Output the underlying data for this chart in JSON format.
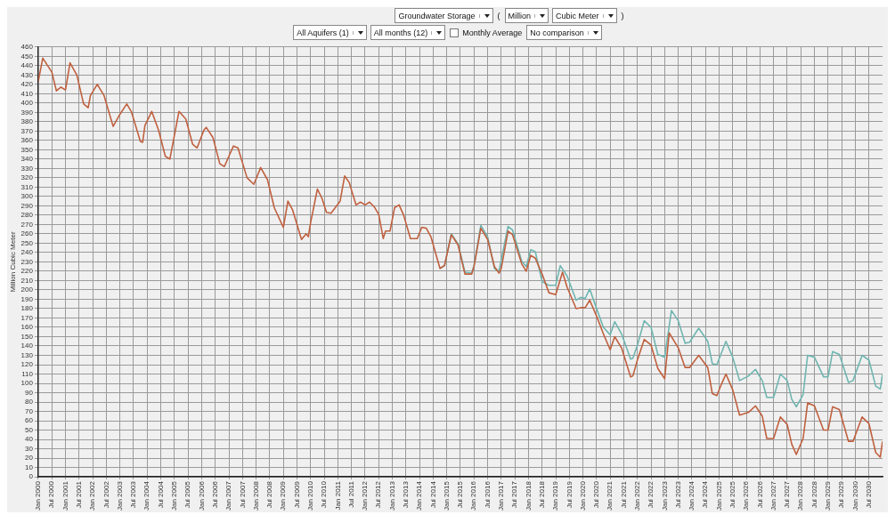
{
  "chart_data": {
    "type": "line",
    "ylabel": "Million Cubic Meter",
    "annotations": [
      "Groundwater Storage",
      "(",
      "Million",
      "Cubic Meter",
      ")",
      "All Aquifers (1)",
      "All months (12)",
      "Monthly Average",
      "No comparison"
    ],
    "xlim": [
      "2000-01",
      "2031-01"
    ],
    "ylim": [
      0,
      460
    ],
    "yticks": [
      0,
      10,
      20,
      30,
      40,
      50,
      60,
      70,
      80,
      90,
      100,
      110,
      120,
      130,
      140,
      150,
      160,
      170,
      180,
      190,
      200,
      210,
      220,
      230,
      240,
      250,
      260,
      270,
      280,
      290,
      300,
      310,
      320,
      330,
      340,
      350,
      360,
      370,
      380,
      390,
      400,
      410,
      420,
      430,
      440,
      450,
      460
    ],
    "xticks": [
      {
        "value": "2000-01",
        "label": "Jan 2000"
      },
      {
        "value": "2000-07",
        "label": "Jul 2000"
      },
      {
        "value": "2001-01",
        "label": "Jan 2001"
      },
      {
        "value": "2001-07",
        "label": "Jul 2001"
      },
      {
        "value": "2002-01",
        "label": "Jan 2002"
      },
      {
        "value": "2002-07",
        "label": "Jul 2002"
      },
      {
        "value": "2003-01",
        "label": "Jan 2003"
      },
      {
        "value": "2003-07",
        "label": "Jul 2003"
      },
      {
        "value": "2004-01",
        "label": "Jan 2004"
      },
      {
        "value": "2004-07",
        "label": "Jul 2004"
      },
      {
        "value": "2005-01",
        "label": "Jan 2005"
      },
      {
        "value": "2005-07",
        "label": "Jul 2005"
      },
      {
        "value": "2006-01",
        "label": "Jan 2006"
      },
      {
        "value": "2006-07",
        "label": "Jul 2006"
      },
      {
        "value": "2007-01",
        "label": "Jan 2007"
      },
      {
        "value": "2007-07",
        "label": "Jul 2007"
      },
      {
        "value": "2008-01",
        "label": "Jan 2008"
      },
      {
        "value": "2008-07",
        "label": "Jul 2008"
      },
      {
        "value": "2009-01",
        "label": "Jan 2009"
      },
      {
        "value": "2009-07",
        "label": "Jul 2009"
      },
      {
        "value": "2010-01",
        "label": "Jan 2010"
      },
      {
        "value": "2010-07",
        "label": "Jul 2010"
      },
      {
        "value": "2011-01",
        "label": "Jan 2011"
      },
      {
        "value": "2011-07",
        "label": "Jul 2011"
      },
      {
        "value": "2012-01",
        "label": "Jan 2012"
      },
      {
        "value": "2012-07",
        "label": "Jul 2012"
      },
      {
        "value": "2013-01",
        "label": "Jan 2013"
      },
      {
        "value": "2013-07",
        "label": "Jul 2013"
      },
      {
        "value": "2014-01",
        "label": "Jan 2014"
      },
      {
        "value": "2014-07",
        "label": "Jul 2014"
      },
      {
        "value": "2015-01",
        "label": "Jan 2015"
      },
      {
        "value": "2015-07",
        "label": "Jul 2015"
      },
      {
        "value": "2016-01",
        "label": "Jan 2016"
      },
      {
        "value": "2016-07",
        "label": "Jul 2016"
      },
      {
        "value": "2017-01",
        "label": "Jan 2017"
      },
      {
        "value": "2017-07",
        "label": "Jul 2017"
      },
      {
        "value": "2018-01",
        "label": "Jan 2018"
      },
      {
        "value": "2018-07",
        "label": "Jul 2018"
      },
      {
        "value": "2019-01",
        "label": "Jan 2019"
      },
      {
        "value": "2019-07",
        "label": "Jul 2019"
      },
      {
        "value": "2020-01",
        "label": "Jan 2020"
      },
      {
        "value": "2020-07",
        "label": "Jul 2020"
      },
      {
        "value": "2021-01",
        "label": "Jan 2021"
      },
      {
        "value": "2021-07",
        "label": "Jul 2021"
      },
      {
        "value": "2022-01",
        "label": "Jan 2022"
      },
      {
        "value": "2022-07",
        "label": "Jul 2022"
      },
      {
        "value": "2023-01",
        "label": "Jan 2023"
      },
      {
        "value": "2023-07",
        "label": "Jul 2023"
      },
      {
        "value": "2024-01",
        "label": "Jan 2024"
      },
      {
        "value": "2024-07",
        "label": "Jul 2024"
      },
      {
        "value": "2025-01",
        "label": "Jan 2025"
      },
      {
        "value": "2025-07",
        "label": "Jul 2025"
      },
      {
        "value": "2026-01",
        "label": "Jan 2026"
      },
      {
        "value": "2026-07",
        "label": "Jul 2026"
      },
      {
        "value": "2027-01",
        "label": "Jan 2027"
      },
      {
        "value": "2027-07",
        "label": "Jul 2027"
      },
      {
        "value": "2028-01",
        "label": "Jan 2028"
      },
      {
        "value": "2028-07",
        "label": "Jul 2028"
      },
      {
        "value": "2029-01",
        "label": "Jan 2029"
      },
      {
        "value": "2029-07",
        "label": "Jul 2029"
      },
      {
        "value": "2030-01",
        "label": "Jan 2030"
      },
      {
        "value": "2030-07",
        "label": "Jul 2030"
      }
    ],
    "grid": true,
    "legend": false,
    "marker": "none",
    "line_style": "solid",
    "series": [
      {
        "color": "#c0603f",
        "x": [
          "2000-01",
          "2000-03",
          "2000-07",
          "2000-09",
          "2000-11",
          "2001-01",
          "2001-03",
          "2001-06",
          "2001-09",
          "2001-11",
          "2001-12",
          "2002-03",
          "2002-06",
          "2002-10",
          "2003-01",
          "2003-04",
          "2003-06",
          "2003-10",
          "2003-11",
          "2003-12",
          "2004-03",
          "2004-06",
          "2004-09",
          "2004-11",
          "2005-03",
          "2005-06",
          "2005-09",
          "2005-11",
          "2006-02",
          "2006-03",
          "2006-06",
          "2006-09",
          "2006-11",
          "2007-01",
          "2007-03",
          "2007-05",
          "2007-09",
          "2007-12",
          "2008-03",
          "2008-06",
          "2008-09",
          "2009-01",
          "2009-03",
          "2009-05",
          "2009-09",
          "2009-11",
          "2009-12",
          "2010-01",
          "2010-04",
          "2010-06",
          "2010-08",
          "2010-10",
          "2011-02",
          "2011-04",
          "2011-06",
          "2011-09",
          "2011-11",
          "2012-01",
          "2012-03",
          "2012-05",
          "2012-07",
          "2012-09",
          "2012-10",
          "2012-12",
          "2013-02",
          "2013-04",
          "2013-06",
          "2013-09",
          "2013-12",
          "2014-02",
          "2014-04",
          "2014-06",
          "2014-10",
          "2014-12",
          "2015-03",
          "2015-06",
          "2015-09",
          "2015-12",
          "2016-01",
          "2016-04",
          "2016-07",
          "2016-10",
          "2016-12",
          "2017-01",
          "2017-04",
          "2017-06",
          "2017-10",
          "2017-12",
          "2018-02",
          "2018-04",
          "2018-07",
          "2018-10",
          "2019-01",
          "2019-04",
          "2019-06",
          "2019-10",
          "2019-12",
          "2020-02",
          "2020-04",
          "2020-07",
          "2020-10",
          "2021-01",
          "2021-03",
          "2021-06",
          "2021-10",
          "2021-11",
          "2022-01",
          "2022-04",
          "2022-07",
          "2022-10",
          "2023-01",
          "2023-03",
          "2023-07",
          "2023-10",
          "2023-12",
          "2024-04",
          "2024-08",
          "2024-10",
          "2024-12",
          "2025-02",
          "2025-04",
          "2025-07",
          "2025-10",
          "2026-02",
          "2026-05",
          "2026-08",
          "2026-10",
          "2027-01",
          "2027-04",
          "2027-07",
          "2027-09",
          "2027-11",
          "2028-02",
          "2028-04",
          "2028-07",
          "2028-11",
          "2029-01",
          "2029-03",
          "2029-06",
          "2029-10",
          "2029-12",
          "2030-04",
          "2030-07",
          "2030-10",
          "2030-12",
          "2031-01"
        ],
        "values": [
          423,
          448,
          433,
          413,
          417,
          414,
          443,
          430,
          399,
          395,
          408,
          420,
          408,
          375,
          388,
          399,
          391,
          359,
          358,
          376,
          391,
          371,
          343,
          340,
          391,
          383,
          356,
          352,
          371,
          374,
          363,
          335,
          332,
          343,
          354,
          352,
          320,
          313,
          331,
          318,
          288,
          267,
          295,
          286,
          254,
          260,
          257,
          272,
          308,
          298,
          283,
          282,
          295,
          322,
          315,
          291,
          294,
          291,
          294,
          289,
          281,
          255,
          263,
          263,
          288,
          291,
          280,
          255,
          255,
          267,
          266,
          257,
          223,
          226,
          259,
          248,
          217,
          217,
          225,
          266,
          254,
          225,
          218,
          223,
          263,
          259,
          228,
          220,
          237,
          234,
          217,
          197,
          195,
          219,
          203,
          180,
          181,
          181,
          189,
          172,
          153,
          136,
          150,
          138,
          107,
          108,
          125,
          147,
          141,
          116,
          105,
          154,
          138,
          117,
          117,
          130,
          117,
          89,
          87,
          99,
          110,
          93,
          66,
          69,
          76,
          65,
          41,
          41,
          64,
          56,
          35,
          24,
          41,
          79,
          76,
          50,
          50,
          75,
          72,
          38,
          38,
          64,
          57,
          26,
          21,
          38
        ]
      },
      {
        "color": "#6fb5b0",
        "x": [
          "2014-10",
          "2014-12",
          "2015-03",
          "2015-06",
          "2015-09",
          "2015-12",
          "2016-01",
          "2016-04",
          "2016-07",
          "2016-10",
          "2016-12",
          "2017-04",
          "2017-06",
          "2017-10",
          "2017-12",
          "2018-02",
          "2018-04",
          "2018-07",
          "2018-10",
          "2019-01",
          "2019-03",
          "2019-06",
          "2019-10",
          "2019-12",
          "2020-02",
          "2020-04",
          "2020-06",
          "2020-10",
          "2021-01",
          "2021-03",
          "2021-06",
          "2021-10",
          "2021-11",
          "2022-01",
          "2022-04",
          "2022-07",
          "2022-10",
          "2023-01",
          "2023-04",
          "2023-07",
          "2023-10",
          "2023-12",
          "2024-04",
          "2024-08",
          "2024-10",
          "2024-12",
          "2025-04",
          "2025-07",
          "2025-10",
          "2026-02",
          "2026-05",
          "2026-08",
          "2026-10",
          "2027-01",
          "2027-04",
          "2027-07",
          "2027-09",
          "2027-11",
          "2028-02",
          "2028-04",
          "2028-07",
          "2028-11",
          "2029-01",
          "2029-03",
          "2029-06",
          "2029-10",
          "2029-12",
          "2030-04",
          "2030-07",
          "2030-10",
          "2030-12",
          "2031-01"
        ],
        "values": [
          223,
          226,
          260,
          249,
          219,
          218,
          226,
          269,
          257,
          223,
          220,
          268,
          264,
          231,
          225,
          243,
          241,
          209,
          205,
          205,
          226,
          215,
          189,
          192,
          191,
          201,
          187,
          160,
          152,
          166,
          153,
          126,
          127,
          141,
          167,
          160,
          131,
          128,
          178,
          167,
          143,
          144,
          159,
          145,
          121,
          120,
          145,
          128,
          103,
          108,
          115,
          103,
          85,
          85,
          110,
          103,
          83,
          75,
          88,
          130,
          128,
          107,
          107,
          134,
          131,
          101,
          103,
          130,
          125,
          97,
          94,
          110
        ]
      }
    ]
  }
}
